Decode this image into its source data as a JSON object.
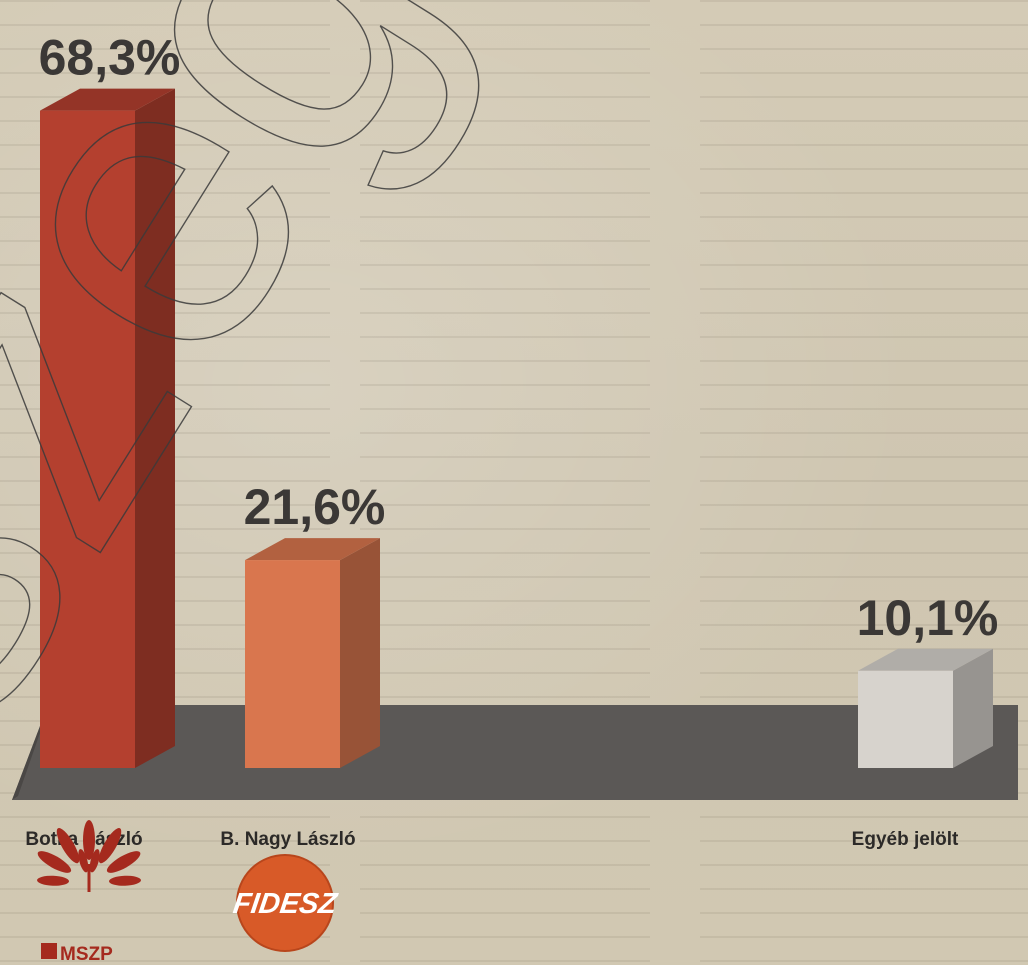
{
  "chart_data": {
    "type": "bar",
    "categories": [
      "Botka László",
      "B. Nagy László",
      "Egyéb jelölt"
    ],
    "values": [
      68.3,
      21.6,
      10.1
    ],
    "value_labels": [
      "68,3%",
      "21,6%",
      "10,1%"
    ],
    "ylim": [
      0,
      72
    ],
    "colors": [
      "#b4402f",
      "#d9764e",
      "#d7d3cd"
    ],
    "legend": false,
    "grid": false
  },
  "parties": [
    {
      "label": "MSZP",
      "color": "#a52a1e"
    },
    {
      "label": "FIDESZ",
      "color": "#d85a28"
    }
  ],
  "watermark": "szeged"
}
